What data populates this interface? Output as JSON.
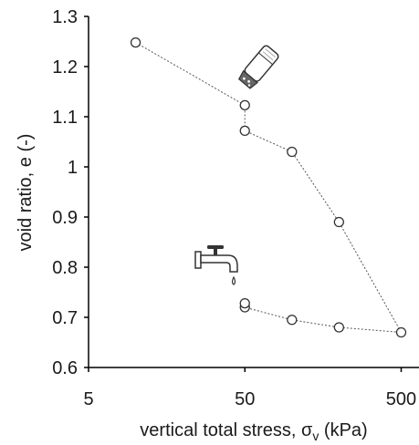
{
  "chart_data": {
    "type": "scatter",
    "xlabel": "vertical total stress, σ",
    "xlabel_sub": "v",
    "xlabel_unit": " (kPa)",
    "ylabel": "void ratio, e (-)",
    "x_scale": "log",
    "xlim": [
      5,
      650
    ],
    "ylim": [
      0.6,
      1.3
    ],
    "x_ticks": [
      5,
      50,
      500
    ],
    "x_tick_labels": [
      "5",
      "50",
      "500"
    ],
    "y_ticks": [
      0.6,
      0.7,
      0.8,
      0.9,
      1.0,
      1.1,
      1.2,
      1.3
    ],
    "y_tick_labels": [
      "0.6",
      "0.7",
      "0.8",
      "0.9",
      "1",
      "1.1",
      "1.2",
      "1.3"
    ],
    "grid": false,
    "line_style": "dotted",
    "marker": "open-circle",
    "series": [
      {
        "points": [
          {
            "x": 10,
            "y": 1.248
          },
          {
            "x": 50,
            "y": 1.123
          },
          {
            "x": 50,
            "y": 1.072
          },
          {
            "x": 100,
            "y": 1.03
          },
          {
            "x": 200,
            "y": 0.89
          },
          {
            "x": 500,
            "y": 0.67
          },
          {
            "x": 200,
            "y": 0.68
          },
          {
            "x": 100,
            "y": 0.695
          },
          {
            "x": 50,
            "y": 0.72
          },
          {
            "x": 50,
            "y": 0.728
          }
        ]
      }
    ],
    "icons": [
      "salt-shaker-icon",
      "water-tap-icon"
    ]
  }
}
